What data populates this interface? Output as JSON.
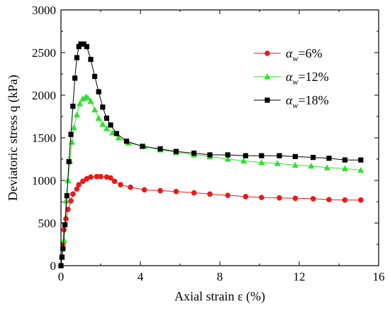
{
  "chart_data": {
    "type": "line",
    "xlabel": "Axial strain ε (%)",
    "ylabel": "Deviatoric stress q (kPa)",
    "xlim": [
      0,
      16
    ],
    "ylim": [
      0,
      3000
    ],
    "x_ticks": [
      "0",
      "4",
      "8",
      "12",
      "16"
    ],
    "y_ticks": [
      "0",
      "500",
      "1000",
      "1500",
      "2000",
      "2500",
      "3000"
    ],
    "grid": false,
    "legend_position": "top-right",
    "series": [
      {
        "name": "αw=6%",
        "legend_symbol": "α",
        "legend_sub": "w",
        "legend_rest": "=6%",
        "color": "#e8191b",
        "marker": "circle",
        "points": [
          [
            0,
            0
          ],
          [
            0.05,
            100
          ],
          [
            0.1,
            260
          ],
          [
            0.15,
            420
          ],
          [
            0.25,
            550
          ],
          [
            0.35,
            660
          ],
          [
            0.5,
            760
          ],
          [
            0.6,
            840
          ],
          [
            0.8,
            900
          ],
          [
            0.9,
            950
          ],
          [
            1.1,
            990
          ],
          [
            1.3,
            1020
          ],
          [
            1.5,
            1040
          ],
          [
            1.8,
            1045
          ],
          [
            2.0,
            1045
          ],
          [
            2.3,
            1040
          ],
          [
            2.5,
            1030
          ],
          [
            2.7,
            990
          ],
          [
            3.0,
            950
          ],
          [
            3.5,
            920
          ],
          [
            4.2,
            890
          ],
          [
            5.0,
            880
          ],
          [
            5.8,
            870
          ],
          [
            6.7,
            855
          ],
          [
            7.5,
            840
          ],
          [
            8.4,
            825
          ],
          [
            9.3,
            810
          ],
          [
            10.1,
            800
          ],
          [
            11.0,
            795
          ],
          [
            11.8,
            790
          ],
          [
            12.7,
            785
          ],
          [
            13.5,
            775
          ],
          [
            14.3,
            770
          ],
          [
            15.1,
            770
          ]
        ]
      },
      {
        "name": "αw=12%",
        "legend_symbol": "α",
        "legend_sub": "w",
        "legend_rest": "=12%",
        "color": "#30e22a",
        "marker": "triangle",
        "points": [
          [
            0,
            0
          ],
          [
            0.05,
            100
          ],
          [
            0.15,
            300
          ],
          [
            0.25,
            760
          ],
          [
            0.35,
            1000
          ],
          [
            0.45,
            1230
          ],
          [
            0.55,
            1450
          ],
          [
            0.65,
            1620
          ],
          [
            0.8,
            1770
          ],
          [
            0.95,
            1900
          ],
          [
            1.1,
            1960
          ],
          [
            1.25,
            1980
          ],
          [
            1.35,
            1970
          ],
          [
            1.5,
            1930
          ],
          [
            1.7,
            1830
          ],
          [
            1.9,
            1730
          ],
          [
            2.1,
            1660
          ],
          [
            2.3,
            1610
          ],
          [
            2.6,
            1560
          ],
          [
            2.9,
            1500
          ],
          [
            3.4,
            1440
          ],
          [
            4.2,
            1400
          ],
          [
            5.0,
            1360
          ],
          [
            5.8,
            1330
          ],
          [
            6.7,
            1300
          ],
          [
            7.5,
            1280
          ],
          [
            8.4,
            1250
          ],
          [
            9.2,
            1230
          ],
          [
            10.1,
            1210
          ],
          [
            10.9,
            1200
          ],
          [
            11.8,
            1180
          ],
          [
            12.6,
            1170
          ],
          [
            13.4,
            1150
          ],
          [
            14.3,
            1140
          ],
          [
            15.1,
            1120
          ]
        ]
      },
      {
        "name": "αw=18%",
        "legend_symbol": "α",
        "legend_sub": "w",
        "legend_rest": "=18%",
        "color": "#000000",
        "marker": "square",
        "points": [
          [
            0,
            0
          ],
          [
            0.05,
            100
          ],
          [
            0.1,
            200
          ],
          [
            0.2,
            480
          ],
          [
            0.3,
            820
          ],
          [
            0.4,
            1220
          ],
          [
            0.5,
            1540
          ],
          [
            0.6,
            1870
          ],
          [
            0.7,
            2200
          ],
          [
            0.8,
            2440
          ],
          [
            0.9,
            2570
          ],
          [
            1.0,
            2600
          ],
          [
            1.15,
            2600
          ],
          [
            1.3,
            2570
          ],
          [
            1.5,
            2420
          ],
          [
            1.7,
            2220
          ],
          [
            1.9,
            2040
          ],
          [
            2.1,
            1860
          ],
          [
            2.3,
            1730
          ],
          [
            2.5,
            1650
          ],
          [
            2.8,
            1550
          ],
          [
            3.3,
            1460
          ],
          [
            4.1,
            1400
          ],
          [
            5.0,
            1370
          ],
          [
            5.8,
            1340
          ],
          [
            6.7,
            1320
          ],
          [
            7.5,
            1300
          ],
          [
            8.4,
            1300
          ],
          [
            9.3,
            1290
          ],
          [
            10.1,
            1290
          ],
          [
            11.0,
            1290
          ],
          [
            11.8,
            1280
          ],
          [
            12.7,
            1270
          ],
          [
            13.5,
            1260
          ],
          [
            14.3,
            1240
          ],
          [
            15.1,
            1240
          ]
        ]
      }
    ]
  }
}
